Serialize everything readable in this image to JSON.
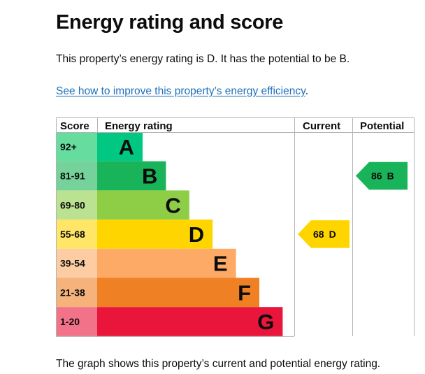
{
  "heading": "Energy rating and score",
  "intro": "This property’s energy rating is D. It has the potential to be B.",
  "link": {
    "text": "See how to improve this property’s energy efficiency",
    "suffix": "."
  },
  "caption": "The graph shows this property’s current and potential energy rating.",
  "chart_data": {
    "type": "bar",
    "title": "Energy rating and score",
    "columns": [
      "Score",
      "Energy rating",
      "Current",
      "Potential"
    ],
    "bands": [
      {
        "letter": "A",
        "range": "92+",
        "color": "#00c781",
        "score_bg": "#66dd9f"
      },
      {
        "letter": "B",
        "range": "81-91",
        "color": "#19b459",
        "score_bg": "#75d29b"
      },
      {
        "letter": "C",
        "range": "69-80",
        "color": "#8dce46",
        "score_bg": "#bbe290"
      },
      {
        "letter": "D",
        "range": "55-68",
        "color": "#ffd500",
        "score_bg": "#ffe666"
      },
      {
        "letter": "E",
        "range": "39-54",
        "color": "#fcaa65",
        "score_bg": "#fdcca3"
      },
      {
        "letter": "F",
        "range": "21-38",
        "color": "#ef8023",
        "score_bg": "#f5b37b"
      },
      {
        "letter": "G",
        "range": "1-20",
        "color": "#e9153b",
        "score_bg": "#f27389"
      }
    ],
    "current": {
      "score": 68,
      "rating": "D",
      "color": "#ffd500"
    },
    "potential": {
      "score": 86,
      "rating": "B",
      "color": "#19b459"
    }
  }
}
